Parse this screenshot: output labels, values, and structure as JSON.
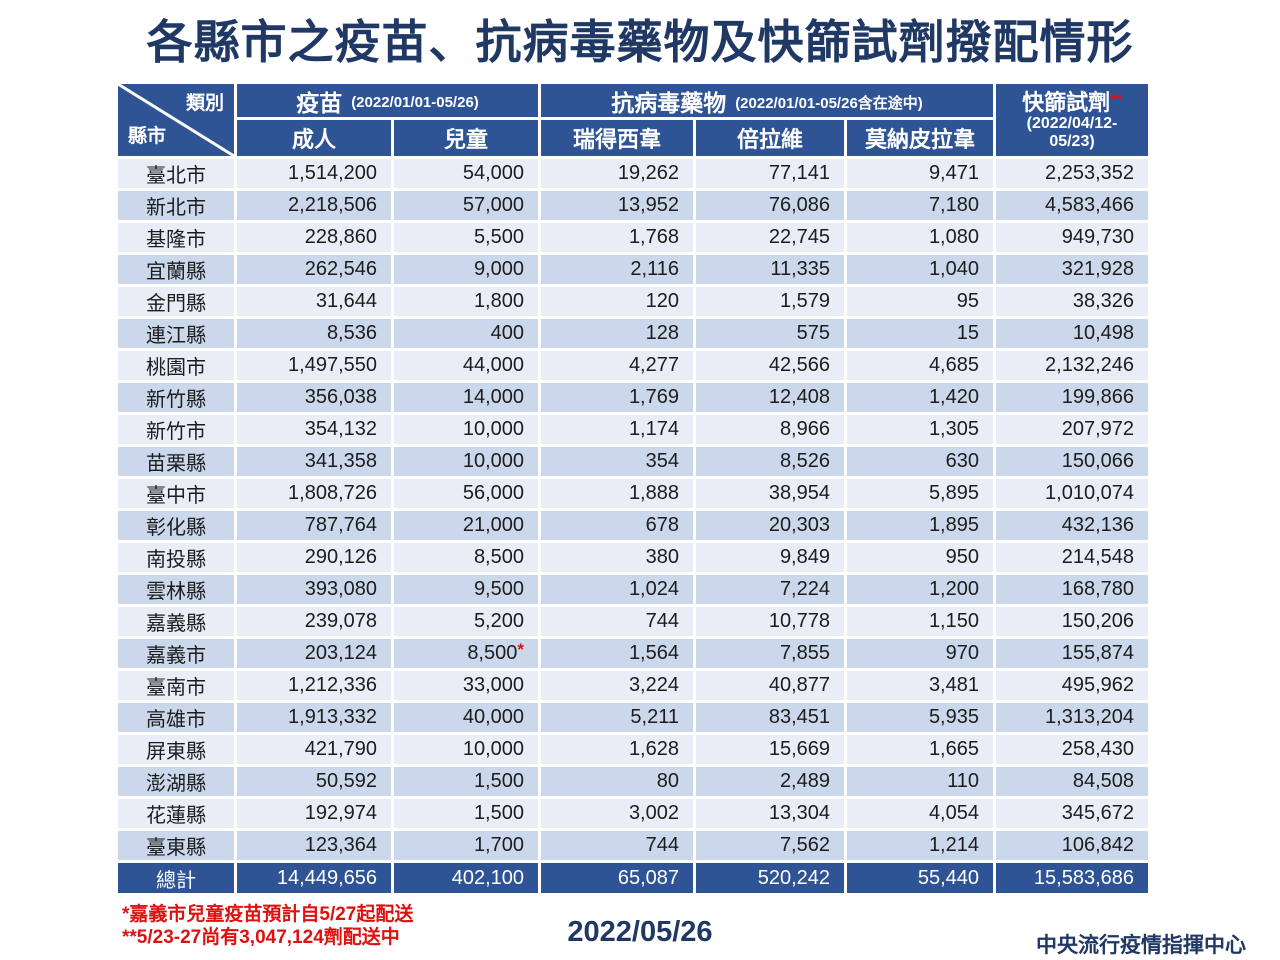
{
  "title": "各縣市之疫苗、抗病毒藥物及快篩試劑撥配情形",
  "colors": {
    "header_bg": "#2F5496",
    "row_light": "#E9EDF6",
    "row_dark": "#CBD7EA",
    "title_text": "#1F3864",
    "note_red": "#DE1111"
  },
  "table": {
    "corner": {
      "top_right": "類別",
      "bottom_left": "縣市"
    },
    "groups": [
      {
        "label": "疫苗",
        "period": "(2022/01/01-05/26)"
      },
      {
        "label": "抗病毒藥物",
        "period": "(2022/01/01-05/26含在途中)"
      },
      {
        "label": "快篩試劑",
        "mark": "**",
        "period_line1": "(2022/04/12-",
        "period_line2": "05/23)"
      }
    ],
    "subheaders": [
      "成人",
      "兒童",
      "瑞得西韋",
      "倍拉維",
      "莫納皮拉韋"
    ],
    "rows": [
      {
        "name": "臺北市",
        "values": [
          "1,514,200",
          "54,000",
          "19,262",
          "77,141",
          "9,471",
          "2,253,352"
        ]
      },
      {
        "name": "新北市",
        "values": [
          "2,218,506",
          "57,000",
          "13,952",
          "76,086",
          "7,180",
          "4,583,466"
        ]
      },
      {
        "name": "基隆市",
        "values": [
          "228,860",
          "5,500",
          "1,768",
          "22,745",
          "1,080",
          "949,730"
        ]
      },
      {
        "name": "宜蘭縣",
        "values": [
          "262,546",
          "9,000",
          "2,116",
          "11,335",
          "1,040",
          "321,928"
        ]
      },
      {
        "name": "金門縣",
        "values": [
          "31,644",
          "1,800",
          "120",
          "1,579",
          "95",
          "38,326"
        ]
      },
      {
        "name": "連江縣",
        "values": [
          "8,536",
          "400",
          "128",
          "575",
          "15",
          "10,498"
        ]
      },
      {
        "name": "桃園市",
        "values": [
          "1,497,550",
          "44,000",
          "4,277",
          "42,566",
          "4,685",
          "2,132,246"
        ]
      },
      {
        "name": "新竹縣",
        "values": [
          "356,038",
          "14,000",
          "1,769",
          "12,408",
          "1,420",
          "199,866"
        ]
      },
      {
        "name": "新竹市",
        "values": [
          "354,132",
          "10,000",
          "1,174",
          "8,966",
          "1,305",
          "207,972"
        ]
      },
      {
        "name": "苗栗縣",
        "values": [
          "341,358",
          "10,000",
          "354",
          "8,526",
          "630",
          "150,066"
        ]
      },
      {
        "name": "臺中市",
        "values": [
          "1,808,726",
          "56,000",
          "1,888",
          "38,954",
          "5,895",
          "1,010,074"
        ]
      },
      {
        "name": "彰化縣",
        "values": [
          "787,764",
          "21,000",
          "678",
          "20,303",
          "1,895",
          "432,136"
        ]
      },
      {
        "name": "南投縣",
        "values": [
          "290,126",
          "8,500",
          "380",
          "9,849",
          "950",
          "214,548"
        ]
      },
      {
        "name": "雲林縣",
        "values": [
          "393,080",
          "9,500",
          "1,024",
          "7,224",
          "1,200",
          "168,780"
        ]
      },
      {
        "name": "嘉義縣",
        "values": [
          "239,078",
          "5,200",
          "744",
          "10,778",
          "1,150",
          "150,206"
        ]
      },
      {
        "name": "嘉義市",
        "values": [
          "203,124",
          "8,500",
          "1,564",
          "7,855",
          "970",
          "155,874"
        ],
        "value_note": {
          "col": 1,
          "mark": "*"
        }
      },
      {
        "name": "臺南市",
        "values": [
          "1,212,336",
          "33,000",
          "3,224",
          "40,877",
          "3,481",
          "495,962"
        ]
      },
      {
        "name": "高雄市",
        "values": [
          "1,913,332",
          "40,000",
          "5,211",
          "83,451",
          "5,935",
          "1,313,204"
        ]
      },
      {
        "name": "屏東縣",
        "values": [
          "421,790",
          "10,000",
          "1,628",
          "15,669",
          "1,665",
          "258,430"
        ]
      },
      {
        "name": "澎湖縣",
        "values": [
          "50,592",
          "1,500",
          "80",
          "2,489",
          "110",
          "84,508"
        ]
      },
      {
        "name": "花蓮縣",
        "values": [
          "192,974",
          "1,500",
          "3,002",
          "13,304",
          "4,054",
          "345,672"
        ]
      },
      {
        "name": "臺東縣",
        "values": [
          "123,364",
          "1,700",
          "744",
          "7,562",
          "1,214",
          "106,842"
        ]
      }
    ],
    "total": {
      "label": "總計",
      "values": [
        "14,449,656",
        "402,100",
        "65,087",
        "520,242",
        "55,440",
        "15,583,686"
      ]
    }
  },
  "footnotes": [
    "*嘉義市兒童疫苗預計自5/27起配送",
    "**5/23-27尚有3,047,124劑配送中"
  ],
  "date": "2022/05/26",
  "organization": "中央流行疫情指揮中心"
}
